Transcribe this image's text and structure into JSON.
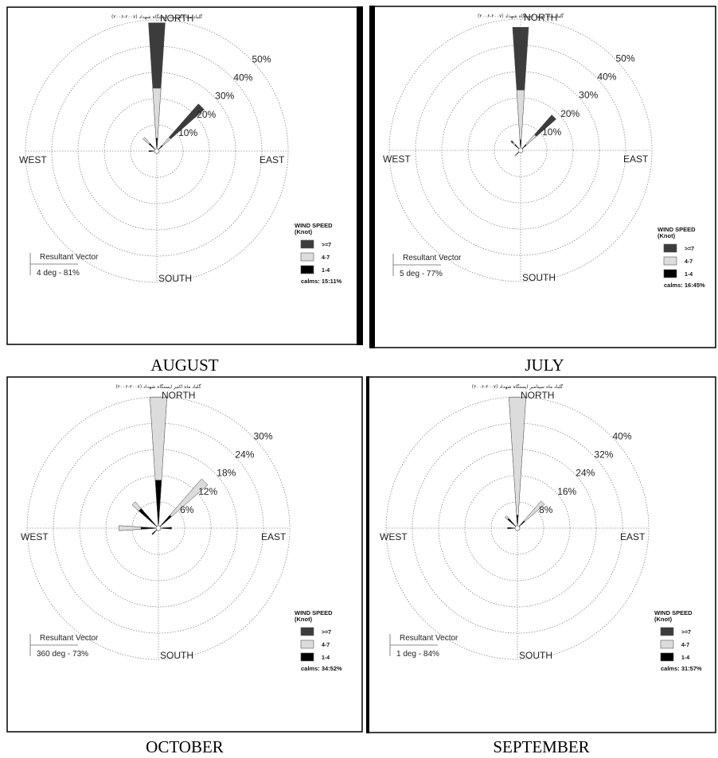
{
  "chart_data": [
    {
      "type": "wind-rose",
      "month": "AUGUST",
      "title": "(۲۰۰۶-۲۰۰۷) گلباد ماه اگوست ایستگاه شهداد",
      "radial_labels": [
        "10%",
        "20%",
        "30%",
        "40%",
        "50%"
      ],
      "radial_max": 50,
      "directions": [
        "NORTH",
        "EAST",
        "SOUTH",
        "WEST"
      ],
      "legend_title": "WIND SPEED (Knot)",
      "legend": [
        {
          "label": ">=7",
          "color": "#3c3c3c"
        },
        {
          "label": "4-7",
          "color": "#dcdcdc"
        },
        {
          "label": "1-4",
          "color": "#000000"
        }
      ],
      "calms": "calms: 15:11%",
      "resultant_vector_label": "Resultant Vector",
      "resultant_vector": "4 deg - 81%",
      "petals": [
        {
          "direction_deg": 0,
          "1-4": 5,
          "4-7": 24,
          ">=7": 49
        },
        {
          "direction_deg": 45,
          "1-4": 3,
          "4-7": 7,
          ">=7": 24
        },
        {
          "direction_deg": 315,
          "1-4": 4,
          "4-7": 7,
          ">=7": 7
        },
        {
          "direction_deg": 270,
          "1-4": 3,
          "4-7": 3,
          ">=7": 3
        }
      ]
    },
    {
      "type": "wind-rose",
      "month": "JULY",
      "title": "(۲۰۰۶-۲۰۰۷) گلباد ماه ژوئیه ایستگاه شهداد",
      "radial_labels": [
        "10%",
        "20%",
        "30%",
        "40%",
        "50%"
      ],
      "radial_max": 50,
      "directions": [
        "NORTH",
        "EAST",
        "SOUTH",
        "WEST"
      ],
      "legend_title": "WIND SPEED (Knot)",
      "legend": [
        {
          "label": ">=7",
          "color": "#3c3c3c"
        },
        {
          "label": "4-7",
          "color": "#dcdcdc"
        },
        {
          "label": "1-4",
          "color": "#000000"
        }
      ],
      "calms": "calms: 16:45%",
      "resultant_vector_label": "Resultant Vector",
      "resultant_vector": "5 deg - 77%",
      "petals": [
        {
          "direction_deg": 0,
          "1-4": 4,
          "4-7": 23,
          ">=7": 47
        },
        {
          "direction_deg": 45,
          "1-4": 3,
          "4-7": 8,
          ">=7": 18
        },
        {
          "direction_deg": 315,
          "1-4": 3,
          "4-7": 4,
          ">=7": 5
        },
        {
          "direction_deg": 225,
          "1-4": 2,
          "4-7": 3,
          ">=7": 3
        }
      ]
    },
    {
      "type": "wind-rose",
      "month": "OCTOBER",
      "title": "(۲۰۰۶-۲۰۰۷) گلباد ماه اکتبر ایستگاه شهداد",
      "radial_labels": [
        "6%",
        "12%",
        "18%",
        "24%",
        "30%"
      ],
      "radial_max": 30,
      "directions": [
        "NORTH",
        "EAST",
        "SOUTH",
        "WEST"
      ],
      "legend_title": "WIND SPEED (Knot)",
      "legend": [
        {
          "label": ">=7",
          "color": "#3c3c3c"
        },
        {
          "label": "4-7",
          "color": "#dcdcdc"
        },
        {
          "label": "1-4",
          "color": "#000000"
        }
      ],
      "calms": "calms: 34:52%",
      "resultant_vector_label": "Resultant Vector",
      "resultant_vector": "360 deg - 73%",
      "petals": [
        {
          "direction_deg": 0,
          "1-4": 11,
          "4-7": 30,
          ">=7": 30
        },
        {
          "direction_deg": 45,
          "1-4": 4,
          "4-7": 15,
          ">=7": 15
        },
        {
          "direction_deg": 315,
          "1-4": 6,
          "4-7": 8,
          ">=7": 8
        },
        {
          "direction_deg": 270,
          "1-4": 4,
          "4-7": 9,
          ">=7": 9
        },
        {
          "direction_deg": 90,
          "1-4": 3,
          "4-7": 3,
          ">=7": 3
        },
        {
          "direction_deg": 225,
          "1-4": 2,
          "4-7": 2,
          ">=7": 2
        }
      ]
    },
    {
      "type": "wind-rose",
      "month": "SEPTEMBER",
      "title": "(۲۰۰۶-۲۰۰۷) گلباد ماه سپتامبر ایستگاه شهداد",
      "radial_labels": [
        "8%",
        "16%",
        "24%",
        "32%",
        "40%"
      ],
      "radial_max": 40,
      "directions": [
        "NORTH",
        "EAST",
        "SOUTH",
        "WEST"
      ],
      "legend_title": "WIND SPEED (Knot)",
      "legend": [
        {
          "label": ">=7",
          "color": "#3c3c3c"
        },
        {
          "label": "4-7",
          "color": "#dcdcdc"
        },
        {
          "label": "1-4",
          "color": "#000000"
        }
      ],
      "calms": "calms: 31:57%",
      "resultant_vector_label": "Resultant Vector",
      "resultant_vector": "1 deg - 84%",
      "petals": [
        {
          "direction_deg": 0,
          "1-4": 4,
          "4-7": 40,
          ">=7": 40
        },
        {
          "direction_deg": 45,
          "1-4": 3,
          "4-7": 11,
          ">=7": 11
        },
        {
          "direction_deg": 315,
          "1-4": 4,
          "4-7": 5,
          ">=7": 5
        },
        {
          "direction_deg": 270,
          "1-4": 3,
          "4-7": 3,
          ">=7": 3
        }
      ]
    }
  ]
}
